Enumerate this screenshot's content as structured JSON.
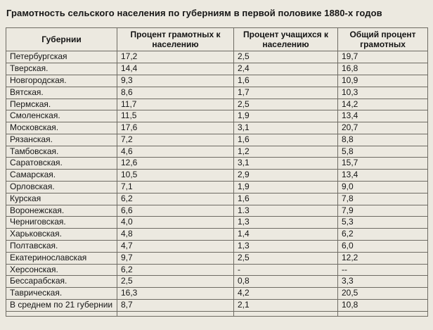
{
  "title": "Грамотность сельского населения по губерниям в первой половике 1880-х годов",
  "table": {
    "headers": [
      "Губернии",
      "Процент грамотных к населению",
      "Процент учащихся к населению",
      "Общий процент грамотных"
    ],
    "rows": [
      [
        "Петербургская",
        "17,2",
        "2,5",
        "19,7"
      ],
      [
        "Тверская.",
        "14,4",
        "2,4",
        "16,8"
      ],
      [
        "Новгородская.",
        "9,3",
        "1,6",
        "10,9"
      ],
      [
        "Вятская.",
        "8,6",
        "1,7",
        "10,3"
      ],
      [
        "Пермская.",
        "11,7",
        "2,5",
        "14,2"
      ],
      [
        "Смоленская.",
        "11,5",
        "1,9",
        "13,4"
      ],
      [
        "Московская.",
        "17,6",
        "3,1",
        "20,7"
      ],
      [
        "Рязанская.",
        "7,2",
        "1,6",
        "8,8"
      ],
      [
        "Тамбовская.",
        "4,6",
        "1,2",
        "5,8"
      ],
      [
        "Саратовская.",
        "12,6",
        "3,1",
        "15,7"
      ],
      [
        "Самарская.",
        "10,5",
        "2,9",
        "13,4"
      ],
      [
        "Орловская.",
        "7,1",
        "1,9",
        "9,0"
      ],
      [
        "Курская",
        "6,2",
        "1,6",
        "7,8"
      ],
      [
        "Воронежская.",
        "6,6",
        "1.3",
        "7,9"
      ],
      [
        "Черниговская.",
        "4,0",
        "1,3",
        "5,3"
      ],
      [
        "Харьковская.",
        "4,8",
        "1,4",
        "6,2"
      ],
      [
        "Полтавская.",
        "4,7",
        "1,3",
        "6,0"
      ],
      [
        "Екатеринославская",
        "9,7",
        "2,5",
        "12,2"
      ],
      [
        "Херсонская.",
        "6,2",
        "-",
        "--"
      ],
      [
        "Бессарабская.",
        "2,5",
        "0,8",
        "3,3"
      ],
      [
        "Таврическая.",
        "16,3",
        "4,2",
        "20,5"
      ],
      [
        "В среднем по 21 губернии",
        "8,7",
        "2,1",
        "10,8"
      ]
    ]
  }
}
